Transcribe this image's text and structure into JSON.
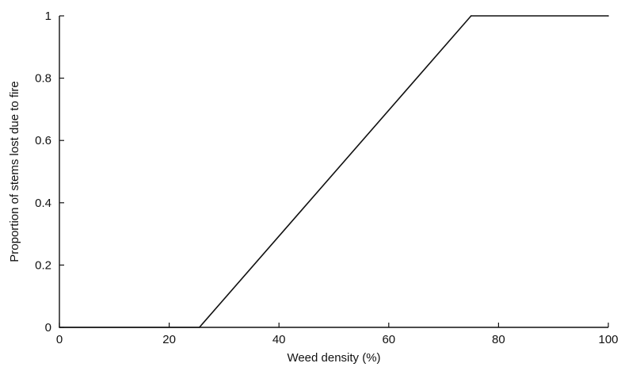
{
  "chart_data": {
    "type": "line",
    "title": "",
    "xlabel": "Weed density (%)",
    "ylabel": "Proportion of stems lost due to fire",
    "xlim": [
      0,
      100
    ],
    "ylim": [
      0,
      1
    ],
    "x_ticks": [
      0,
      20,
      40,
      60,
      80,
      100
    ],
    "y_ticks": [
      0,
      0.2,
      0.4,
      0.6,
      0.8,
      1
    ],
    "x_tick_labels": [
      "0",
      "20",
      "40",
      "60",
      "80",
      "100"
    ],
    "y_tick_labels": [
      "0",
      "0.2",
      "0.4",
      "0.6",
      "0.8",
      "1"
    ],
    "grid": false,
    "legend": "none",
    "series": [
      {
        "color": "#111111",
        "x": [
          0,
          25.5,
          75,
          100
        ],
        "y": [
          0,
          0,
          1,
          1
        ]
      }
    ]
  }
}
